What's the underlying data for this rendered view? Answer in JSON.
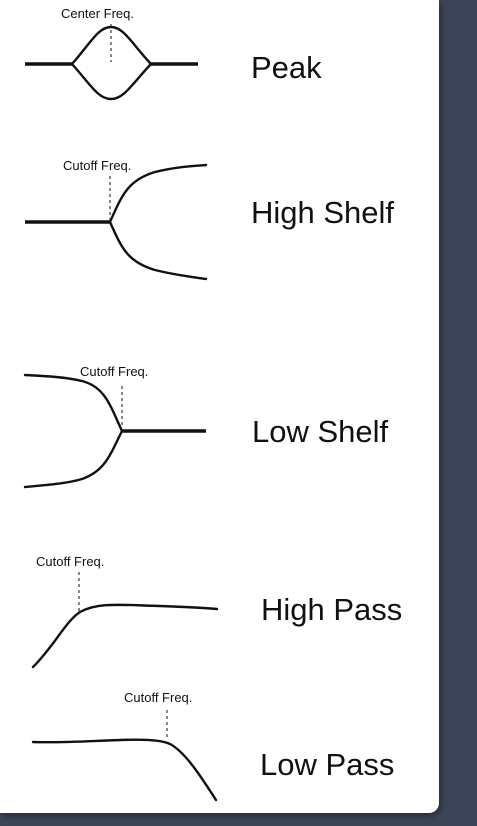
{
  "filters": [
    {
      "name": "Peak",
      "freq_label": "Center Freq."
    },
    {
      "name": "High Shelf",
      "freq_label": "Cutoff Freq."
    },
    {
      "name": "Low Shelf",
      "freq_label": "Cutoff Freq."
    },
    {
      "name": "High Pass",
      "freq_label": "Cutoff Freq."
    },
    {
      "name": "Low Pass",
      "freq_label": "Cutoff Freq."
    }
  ]
}
